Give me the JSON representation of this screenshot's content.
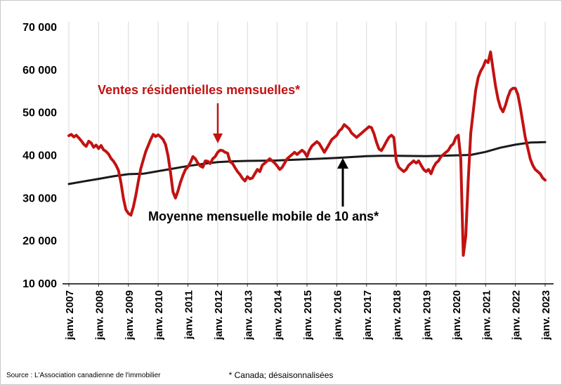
{
  "chart_data": {
    "type": "line",
    "title": "",
    "xlabel": "",
    "ylabel": "",
    "ylim": [
      10000,
      70000
    ],
    "grid": "vertical-only",
    "legend_position": "none",
    "x_tick_labels": [
      "janv. 2007",
      "janv. 2008",
      "janv. 2009",
      "janv. 2010",
      "janv. 2011",
      "janv. 2012",
      "janv. 2013",
      "janv. 2014",
      "janv. 2015",
      "janv. 2016",
      "janv. 2017",
      "janv. 2018",
      "janv. 2019",
      "janv. 2020",
      "janv. 2021",
      "janv. 2022",
      "janv. 2023"
    ],
    "y_ticks": [
      70000,
      60000,
      50000,
      40000,
      30000,
      20000,
      10000
    ],
    "y_tick_labels": [
      "70 000",
      "60 000",
      "50 000",
      "40 000",
      "30 000",
      "20 000",
      "10 000"
    ],
    "colors": {
      "grid": "#d9d9d9",
      "axis": "#000000"
    },
    "series": [
      {
        "name": "Ventes résidentielles mensuelles*",
        "color": "#c21212",
        "frequency": "monthly",
        "start": "janv. 2007",
        "values": [
          44500,
          44800,
          44200,
          44600,
          44000,
          43300,
          42500,
          42000,
          43200,
          42800,
          41800,
          42300,
          41500,
          42200,
          41200,
          40800,
          40200,
          39200,
          38500,
          37600,
          36400,
          33500,
          29800,
          27200,
          26300,
          25900,
          27800,
          30500,
          33800,
          36800,
          38800,
          40800,
          42200,
          43600,
          44800,
          44300,
          44700,
          44200,
          43600,
          42400,
          39800,
          35800,
          31300,
          29900,
          31600,
          33600,
          35200,
          36600,
          37200,
          38200,
          39600,
          39100,
          38100,
          37400,
          37100,
          38600,
          38500,
          38000,
          39100,
          39600,
          40600,
          41100,
          41000,
          40600,
          40400,
          38400,
          38000,
          37000,
          36100,
          35400,
          34500,
          33900,
          34900,
          34400,
          34600,
          35600,
          36600,
          36100,
          37600,
          38100,
          38600,
          39100,
          38600,
          38100,
          37400,
          36600,
          37100,
          38100,
          39100,
          39600,
          40100,
          40600,
          40100,
          40600,
          41100,
          40600,
          39600,
          41100,
          42100,
          42600,
          43100,
          42600,
          41600,
          40600,
          41600,
          42600,
          43600,
          44100,
          44600,
          45600,
          46100,
          47100,
          46600,
          46100,
          45100,
          44600,
          44100,
          44600,
          45100,
          45600,
          46100,
          46600,
          46400,
          45000,
          43000,
          41400,
          41000,
          42000,
          43100,
          44100,
          44600,
          44100,
          38600,
          37100,
          36600,
          36100,
          36600,
          37600,
          38100,
          38600,
          38100,
          38600,
          37600,
          36600,
          36100,
          36600,
          35600,
          37100,
          38100,
          38600,
          39600,
          40100,
          40600,
          41100,
          42100,
          42600,
          44100,
          44600,
          39100,
          16500,
          21000,
          34000,
          45100,
          50100,
          55100,
          58100,
          59600,
          60600,
          62100,
          61600,
          64100,
          60100,
          56100,
          53100,
          51100,
          50100,
          51600,
          53600,
          55100,
          55600,
          55600,
          54100,
          51100,
          47600,
          44100,
          41600,
          39100,
          37600,
          36600,
          36100,
          35600,
          34600,
          34100
        ]
      },
      {
        "name": "Moyenne mensuelle mobile de 10 ans*",
        "color": "#1a1a1a",
        "points": [
          [
            2007.0,
            33200
          ],
          [
            2007.5,
            33800
          ],
          [
            2008.0,
            34400
          ],
          [
            2008.5,
            35000
          ],
          [
            2009.0,
            35500
          ],
          [
            2009.5,
            35600
          ],
          [
            2010.0,
            36200
          ],
          [
            2010.5,
            36800
          ],
          [
            2011.0,
            37400
          ],
          [
            2011.5,
            37900
          ],
          [
            2012.0,
            38300
          ],
          [
            2012.5,
            38500
          ],
          [
            2013.0,
            38600
          ],
          [
            2013.5,
            38650
          ],
          [
            2014.0,
            38700
          ],
          [
            2014.5,
            38850
          ],
          [
            2015.0,
            39000
          ],
          [
            2015.5,
            39150
          ],
          [
            2016.0,
            39300
          ],
          [
            2016.5,
            39500
          ],
          [
            2017.0,
            39700
          ],
          [
            2017.5,
            39800
          ],
          [
            2018.0,
            39800
          ],
          [
            2018.5,
            39750
          ],
          [
            2019.0,
            39700
          ],
          [
            2019.5,
            39800
          ],
          [
            2020.0,
            39900
          ],
          [
            2020.5,
            40000
          ],
          [
            2021.0,
            40700
          ],
          [
            2021.5,
            41700
          ],
          [
            2022.0,
            42400
          ],
          [
            2022.5,
            42900
          ],
          [
            2023.0,
            43000
          ]
        ]
      }
    ],
    "annotations": {
      "red": {
        "text": "Ventes résidentielles mensuelles*",
        "arrow": "down",
        "color": "#c21212"
      },
      "black": {
        "text": "Moyenne mensuelle mobile de 10 ans*",
        "arrow": "up",
        "color": "#000000"
      }
    }
  },
  "footer": {
    "source": "Source : L'Association canadienne de l'immobilier",
    "note": "* Canada; désaisonnalisées"
  }
}
